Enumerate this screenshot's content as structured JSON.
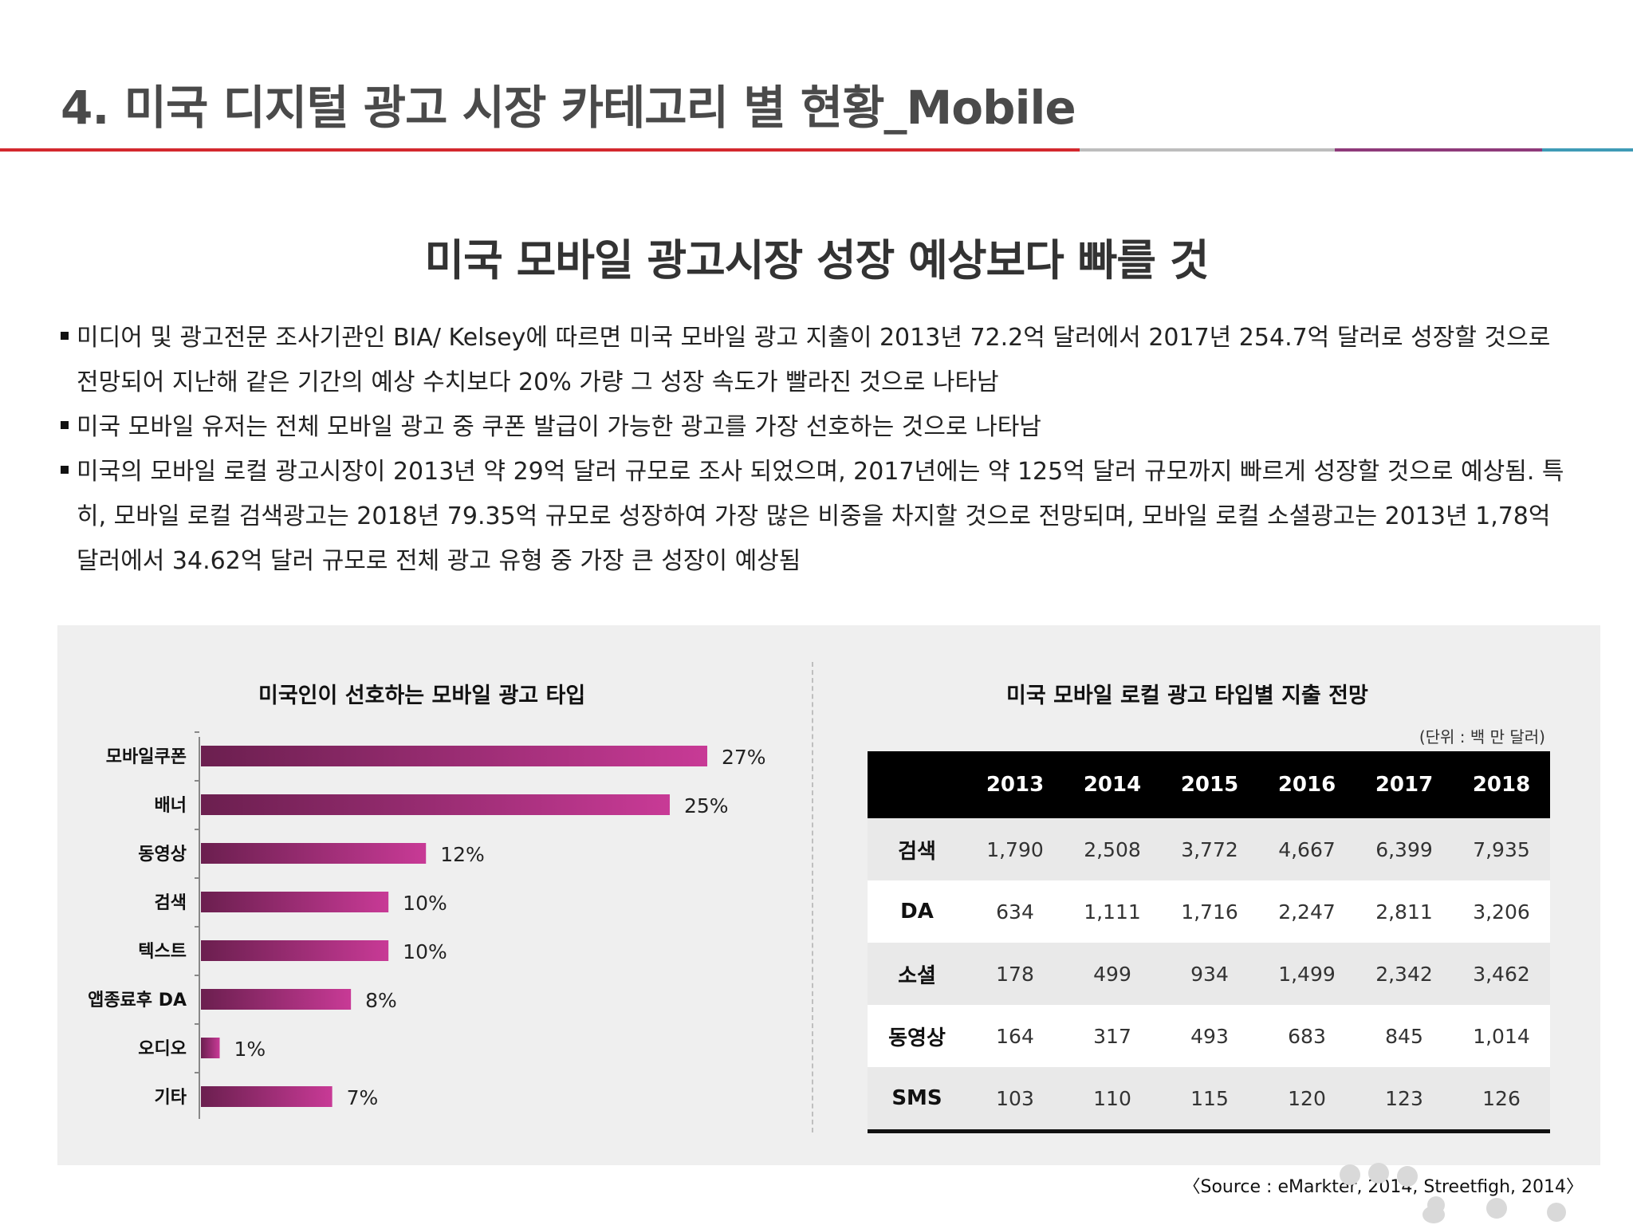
{
  "header": {
    "title": "4. 미국 디지털 광고 시장 카테고리 별 현황_Mobile"
  },
  "headline": "미국 모바일 광고시장 성장 예상보다 빠를 것",
  "bullets": [
    "미디어 및 광고전문 조사기관인 BIA/ Kelsey에 따르면 미국 모바일 광고 지출이 2013년 72.2억 달러에서 2017년 254.7억 달러로 성장할 것으로 전망되어 지난해 같은 기간의 예상 수치보다 20% 가량 그 성장 속도가 빨라진 것으로 나타남",
    "미국 모바일 유저는 전체 모바일 광고 중 쿠폰 발급이 가능한 광고를 가장 선호하는 것으로 나타남",
    "미국의 모바일 로컬 광고시장이 2013년 약 29억 달러 규모로 조사 되었으며, 2017년에는 약 125억 달러 규모까지 빠르게 성장할 것으로 예상됨. 특히, 모바일 로컬 검색광고는 2018년 79.35억 규모로 성장하여 가장 많은 비중을 차지할 것으로 전망되며, 모바일 로컬 소셜광고는 2013년 1,78억 달러에서 34.62억 달러 규모로 전체 광고 유형 중 가장 큰 성장이 예상됨"
  ],
  "chart_data": {
    "type": "bar",
    "orientation": "horizontal",
    "title": "미국인이 선호하는 모바일 광고 타입",
    "categories": [
      "모바일쿠폰",
      "배너",
      "동영상",
      "검색",
      "텍스트",
      "앱종료후 DA",
      "오디오",
      "기타"
    ],
    "values": [
      27,
      25,
      12,
      10,
      10,
      8,
      1,
      7
    ],
    "value_labels": [
      "27%",
      "25%",
      "12%",
      "10%",
      "10%",
      "8%",
      "1%",
      "7%"
    ],
    "xlabel": "",
    "ylabel": "",
    "xlim": [
      0,
      30
    ],
    "grid": false,
    "bar_color_start": "#6b1f4f",
    "bar_color_end": "#c83a96"
  },
  "table": {
    "title": "미국 모바일 로컬 광고 타입별 지출 전망",
    "unit": "(단위 : 백 만 달러)",
    "corner": "",
    "columns": [
      "2013",
      "2014",
      "2015",
      "2016",
      "2017",
      "2018"
    ],
    "rows": [
      {
        "label": "검색",
        "values": [
          "1,790",
          "2,508",
          "3,772",
          "4,667",
          "6,399",
          "7,935"
        ]
      },
      {
        "label": "DA",
        "values": [
          "634",
          "1,111",
          "1,716",
          "2,247",
          "2,811",
          "3,206"
        ]
      },
      {
        "label": "소셜",
        "values": [
          "178",
          "499",
          "934",
          "1,499",
          "2,342",
          "3,462"
        ]
      },
      {
        "label": "동영상",
        "values": [
          "164",
          "317",
          "493",
          "683",
          "845",
          "1,014"
        ]
      },
      {
        "label": "SMS",
        "values": [
          "103",
          "110",
          "115",
          "120",
          "123",
          "126"
        ]
      }
    ]
  },
  "source": "〈Source : eMarkter, 2014, Streetfigh, 2014〉",
  "colors": {
    "accent_red": "#d3282e",
    "accent_purple": "#8e3a7a",
    "accent_blue": "#3f9bb6",
    "panel_bg": "#efefef"
  }
}
